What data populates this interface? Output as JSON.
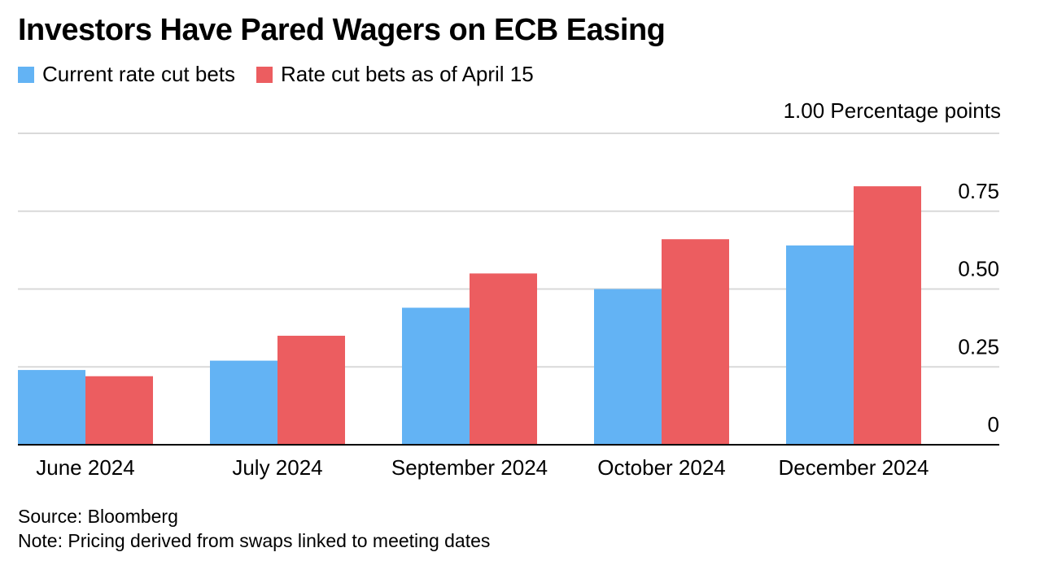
{
  "title": "Investors Have Pared Wagers on ECB Easing",
  "unit_label": "1.00 Percentage points",
  "source": "Source: Bloomberg",
  "note": "Note: Pricing derived from swaps linked to meeting dates",
  "colors": {
    "current": "#63b3f4",
    "april": "#ec5d60",
    "grid": "#d9d9d9",
    "baseline": "#000000"
  },
  "chart_data": {
    "type": "bar",
    "categories": [
      "June 2024",
      "July 2024",
      "September 2024",
      "October 2024",
      "December 2024"
    ],
    "series": [
      {
        "name": "Current rate cut bets",
        "values": [
          0.24,
          0.27,
          0.44,
          0.5,
          0.64
        ]
      },
      {
        "name": "Rate cut bets as of April 15",
        "values": [
          0.22,
          0.35,
          0.55,
          0.66,
          0.83
        ]
      }
    ],
    "ylim": [
      0,
      1.0
    ],
    "yticks": [
      0,
      0.25,
      0.5,
      0.75,
      1.0
    ],
    "ytick_labels": [
      "0",
      "0.25",
      "0.50",
      "0.75",
      "1.00"
    ],
    "ylabel": "Percentage points",
    "xlabel": "",
    "grid": true,
    "legend_position": "top-left"
  }
}
